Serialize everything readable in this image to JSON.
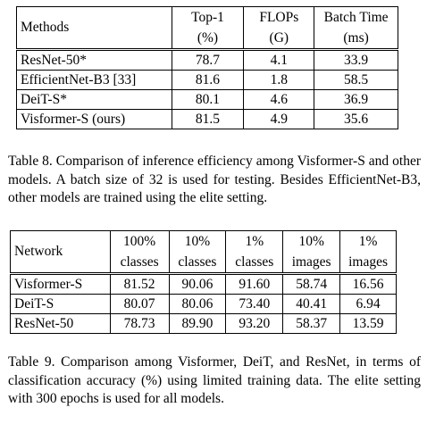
{
  "table8": {
    "header_row1": [
      "Methods",
      "Top-1",
      "FLOPs",
      "Batch Time"
    ],
    "header_row2": [
      "",
      "(%)",
      "(G)",
      "(ms)"
    ],
    "rows": [
      [
        "ResNet-50*",
        "78.7",
        "4.1",
        "33.9"
      ],
      [
        "EfficientNet-B3 [33]",
        "81.6",
        "1.8",
        "58.5"
      ],
      [
        "DeiT-S*",
        "80.1",
        "4.6",
        "36.9"
      ],
      [
        "Visformer-S (ours)",
        "81.5",
        "4.9",
        "35.6"
      ]
    ],
    "caption": "Table 8. Comparison of inference efficiency among Visformer-S and other models. A batch size of 32 is used for testing. Besides EfficientNet-B3, other models are trained using the elite setting."
  },
  "table9": {
    "header_row1": [
      "Network",
      "100%",
      "10%",
      "1%",
      "10%",
      "1%"
    ],
    "header_row2": [
      "",
      "classes",
      "classes",
      "classes",
      "images",
      "images"
    ],
    "rows": [
      [
        "Visformer-S",
        "81.52",
        "90.06",
        "91.60",
        "58.74",
        "16.56"
      ],
      [
        "DeiT-S",
        "80.07",
        "80.06",
        "73.40",
        "40.41",
        "6.94"
      ],
      [
        "ResNet-50",
        "78.73",
        "89.90",
        "93.20",
        "58.37",
        "13.59"
      ]
    ],
    "caption": "Table 9. Comparison among Visformer, DeiT, and ResNet, in terms of classification accuracy (%) using limited training data. The elite setting with 300 epochs is used for all models."
  }
}
